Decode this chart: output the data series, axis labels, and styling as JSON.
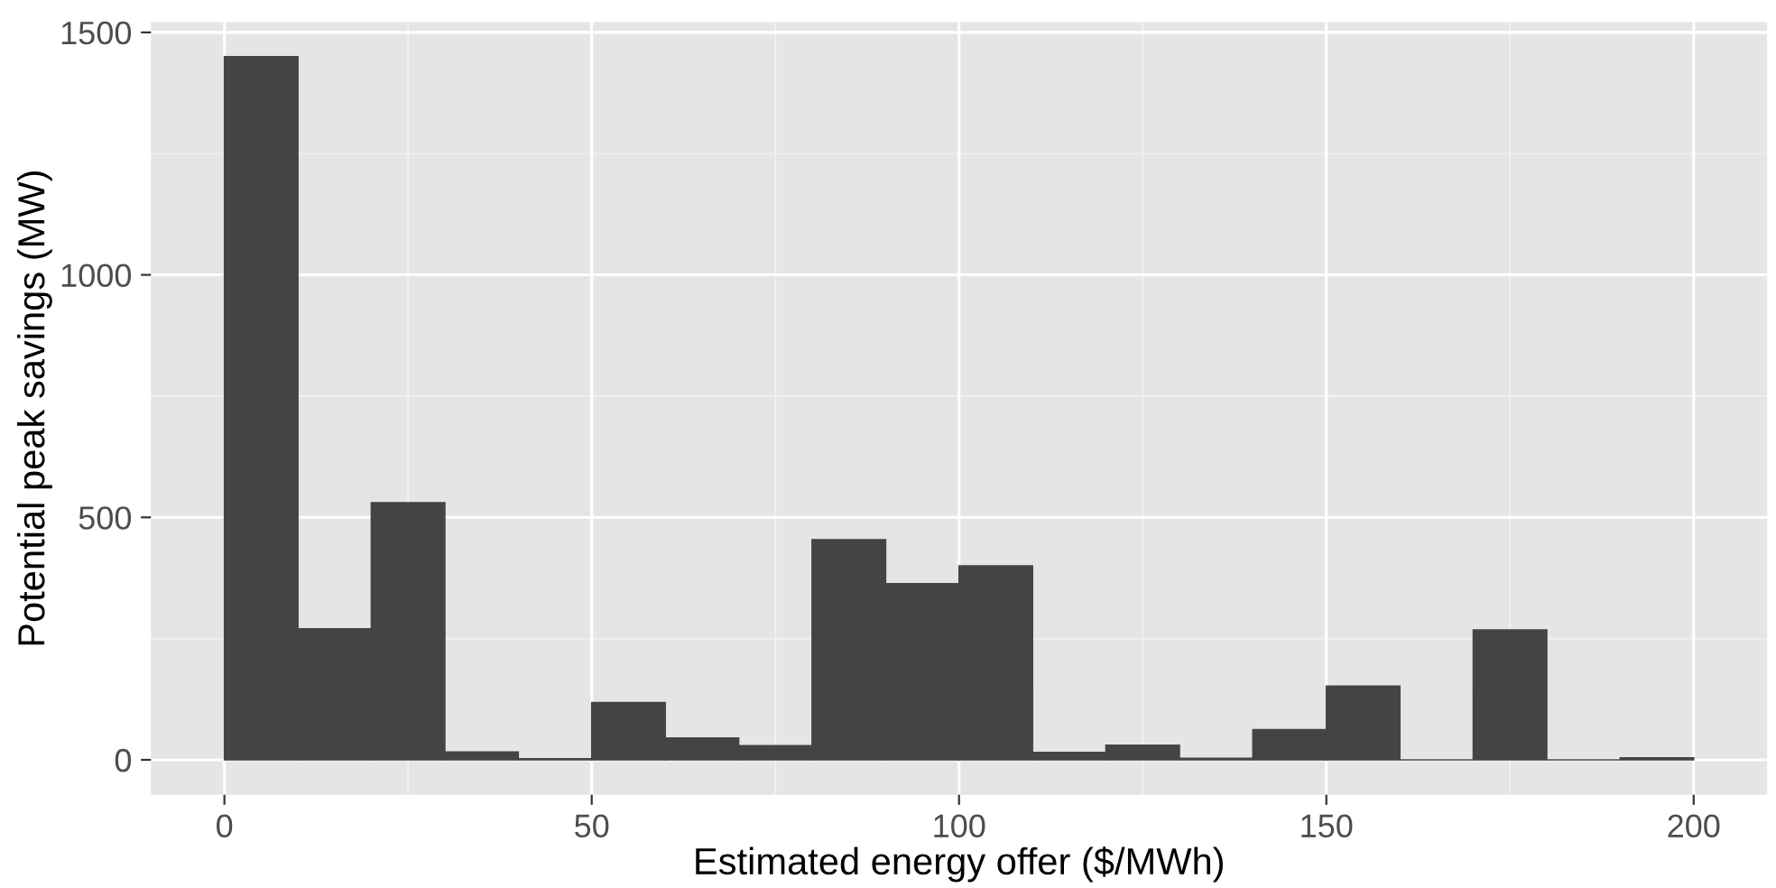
{
  "chart_data": {
    "type": "histogram",
    "xlabel": "Estimated energy offer ($/MWh)",
    "ylabel": "Potential peak savings (MW)",
    "bins": [
      0,
      10,
      20,
      30,
      40,
      50,
      60,
      70,
      80,
      90,
      100,
      110,
      120,
      130,
      140,
      150,
      160,
      170,
      180,
      190,
      200
    ],
    "values": [
      1450,
      270,
      530,
      16,
      2,
      118,
      45,
      29,
      454,
      363,
      400,
      15,
      30,
      3,
      62,
      152,
      0,
      268,
      0,
      4
    ],
    "color": "#444444",
    "xlim": [
      -10,
      210
    ],
    "xticks": [
      0,
      50,
      100,
      150,
      200
    ],
    "ylim": [
      -72,
      1521
    ],
    "yticks": [
      0,
      500,
      1000,
      1500
    ],
    "grid": true
  }
}
